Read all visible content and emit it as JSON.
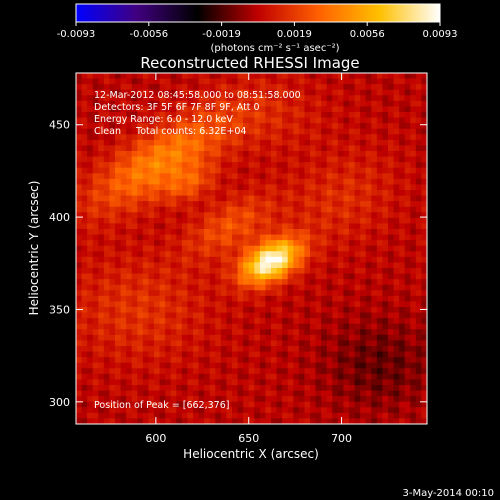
{
  "chart_data": {
    "type": "heatmap",
    "title": "Reconstructed RHESSI Image",
    "xlabel": "Heliocentric X (arcsec)",
    "ylabel": "Heliocentric Y (arcsec)",
    "xlim": [
      557,
      746
    ],
    "ylim": [
      288,
      478
    ],
    "x_ticks": [
      600,
      650,
      700
    ],
    "y_ticks": [
      300,
      350,
      400,
      450
    ],
    "colorbar": {
      "ticks": [
        "-0.0093",
        "-0.0056",
        "-0.0019",
        "0.0019",
        "0.0056",
        "0.0093"
      ],
      "range": [
        -0.0093,
        0.0093
      ],
      "unit_label": "(photons cm⁻² s⁻¹ asec⁻²)",
      "colormap": [
        "#0000ff",
        "#400080",
        "#000000",
        "#c00000",
        "#ff6000",
        "#ffc000",
        "#ffffff"
      ]
    },
    "annotations": {
      "time_range": "12-Mar-2012 08:45:58.000 to 08:51:58.000",
      "detectors": "Detectors: 3F 5F 6F 7F 8F 9F, Att 0",
      "energy_range": "Energy Range: 6.0 - 12.0 keV",
      "method_counts": "Clean     Total counts: 6.32E+04",
      "peak_position": "Position of Peak = [662,376]"
    },
    "features": [
      {
        "x": 662,
        "y": 376,
        "sigma_major": 12,
        "sigma_minor": 7,
        "angle_deg": -28,
        "amplitude": 0.0093
      },
      {
        "x": 602,
        "y": 430,
        "sigma_major": 30,
        "sigma_minor": 11,
        "angle_deg": -32,
        "amplitude": 0.0042
      },
      {
        "x": 618,
        "y": 418,
        "sigma_major": 10,
        "sigma_minor": 6,
        "angle_deg": -25,
        "amplitude": 0.0022
      },
      {
        "x": 640,
        "y": 395,
        "sigma_major": 18,
        "sigma_minor": 9,
        "angle_deg": -30,
        "amplitude": 0.0025
      },
      {
        "x": 590,
        "y": 350,
        "sigma_major": 26,
        "sigma_minor": 20,
        "angle_deg": 0,
        "amplitude": 0.0016
      },
      {
        "x": 700,
        "y": 410,
        "sigma_major": 22,
        "sigma_minor": 16,
        "angle_deg": -30,
        "amplitude": 0.0014
      },
      {
        "x": 660,
        "y": 455,
        "sigma_major": 22,
        "sigma_minor": 14,
        "angle_deg": 0,
        "amplitude": 0.0011
      },
      {
        "x": 720,
        "y": 320,
        "sigma_major": 22,
        "sigma_minor": 18,
        "angle_deg": 0,
        "amplitude": -0.0015
      }
    ]
  },
  "footer": {
    "date": "3-May-2014 00:10"
  }
}
